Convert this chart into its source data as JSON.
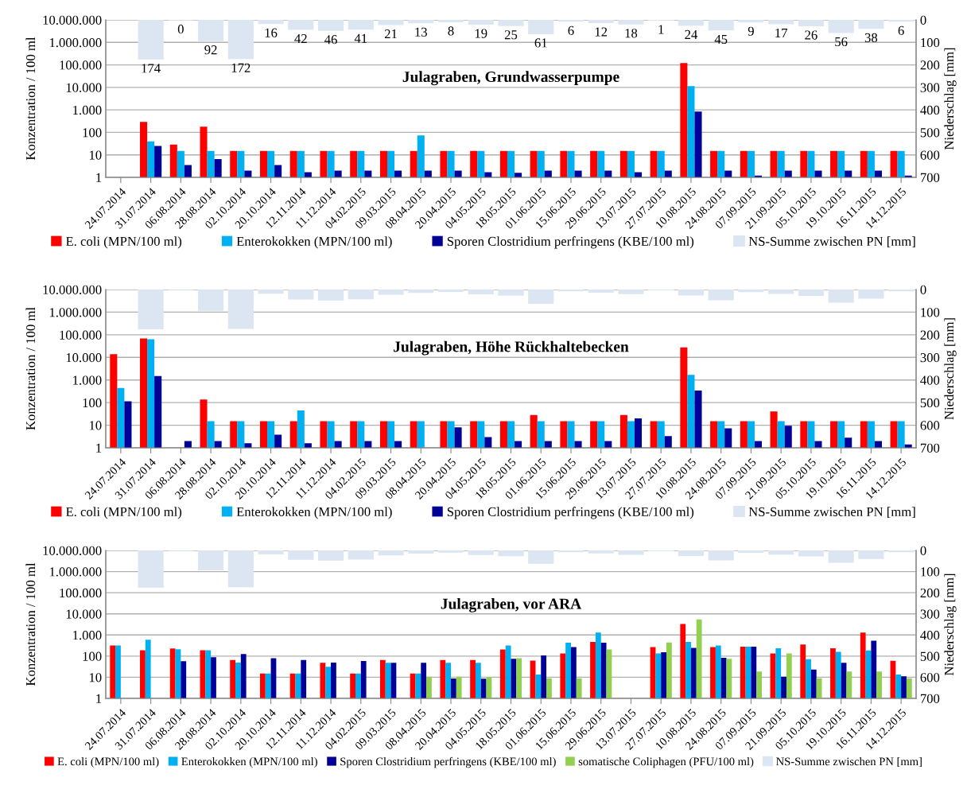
{
  "chart_data": [
    {
      "type": "bar",
      "title": "Julagraben, Grundwasserpumpe",
      "ylabel": "Konzentration / 100 ml",
      "y2label": "Niederschlag [mm]",
      "categories": [
        "24.07.2014",
        "31.07.2014",
        "06.08.2014",
        "28.08.2014",
        "02.10.2014",
        "20.10.2014",
        "12.11.2014",
        "11.12.2014",
        "04.02.2015",
        "09.03.2015",
        "08.04.2015",
        "20.04.2015",
        "04.05.2015",
        "18.05.2015",
        "01.06.2015",
        "15.06.2015",
        "29.06.2015",
        "13.07.2015",
        "27.07.2015",
        "10.08.2015",
        "24.08.2015",
        "07.09.2015",
        "21.09.2015",
        "05.10.2015",
        "19.10.2015",
        "16.11.2015",
        "14.12.2015"
      ],
      "series": [
        {
          "name": "E. coli (MPN/100 ml)",
          "color": "#ff0000",
          "values": [
            null,
            290,
            29,
            180,
            15,
            15,
            15,
            15,
            15,
            15,
            15,
            15,
            15,
            15,
            15,
            15,
            15,
            15,
            15,
            120000,
            15,
            15,
            15,
            15,
            15,
            15,
            15
          ]
        },
        {
          "name": "Enterokokken (MPN/100 ml)",
          "color": "#00b0f0",
          "values": [
            null,
            40,
            15,
            15,
            15,
            15,
            15,
            15,
            15,
            15,
            74,
            15,
            15,
            15,
            15,
            15,
            15,
            15,
            15,
            11500,
            15,
            15,
            15,
            15,
            15,
            15,
            15
          ]
        },
        {
          "name": "Sporen Clostridium perfringens (KBE/100 ml)",
          "color": "#000099",
          "values": [
            null,
            25,
            3.5,
            6.5,
            2,
            3.5,
            1.7,
            2,
            2,
            2,
            2,
            2,
            1.7,
            1.6,
            2,
            2,
            2,
            1.7,
            2,
            850,
            2,
            1.2,
            2,
            2,
            2,
            2,
            1.2
          ]
        },
        {
          "name": "NS-Summe zwischen PN [mm]",
          "color": "#dce6f2",
          "axis": "y2",
          "values": [
            null,
            174,
            0,
            92,
            172,
            16,
            42,
            46,
            41,
            21,
            13,
            8,
            19,
            25,
            61,
            6,
            12,
            18,
            1,
            24,
            45,
            9,
            17,
            26,
            56,
            38,
            6
          ],
          "value_labels": [
            null,
            "174",
            "0",
            "92",
            "172",
            "16",
            "42",
            "46",
            "41",
            "21",
            "13",
            "8",
            "19",
            "25",
            "61",
            "6",
            "12",
            "18",
            "1",
            "24",
            "45",
            "9",
            "17",
            "26",
            "56",
            "38",
            "6"
          ]
        }
      ],
      "log": "y",
      "ylim": [
        1,
        10000000
      ],
      "yticks": [
        {
          "value": 1,
          "label": "1"
        },
        {
          "value": 10,
          "label": "10"
        },
        {
          "value": 100,
          "label": "100"
        },
        {
          "value": 1000,
          "label": "1.000"
        },
        {
          "value": 10000,
          "label": "10.000"
        },
        {
          "value": 100000,
          "label": "100.000"
        },
        {
          "value": 1000000,
          "label": "1.000.000"
        },
        {
          "value": 10000000,
          "label": "10.000.000"
        }
      ],
      "y2lim": [
        700,
        0
      ],
      "y2ticks": [
        0,
        100,
        200,
        300,
        400,
        500,
        600,
        700
      ],
      "grid": "y",
      "legend": "bottom"
    },
    {
      "type": "bar",
      "title": "Julagraben, Höhe Rückhaltebecken",
      "ylabel": "Konzentration / 100 ml",
      "y2label": "Niederschlag [mm]",
      "categories": [
        "24.07.2014",
        "31.07.2014",
        "06.08.2014",
        "28.08.2014",
        "02.10.2014",
        "20.10.2014",
        "12.11.2014",
        "11.12.2014",
        "04.02.2015",
        "09.03.2015",
        "08.04.2015",
        "20.04.2015",
        "04.05.2015",
        "18.05.2015",
        "01.06.2015",
        "15.06.2015",
        "29.06.2015",
        "13.07.2015",
        "27.07.2015",
        "10.08.2015",
        "24.08.2015",
        "07.09.2015",
        "21.09.2015",
        "05.10.2015",
        "19.10.2015",
        "16.11.2015",
        "14.12.2015"
      ],
      "series": [
        {
          "name": "E. coli (MPN/100 ml)",
          "color": "#ff0000",
          "values": [
            14000,
            69000,
            null,
            137,
            15,
            15,
            15,
            15,
            15,
            15,
            15,
            15,
            15,
            15,
            28,
            15,
            15,
            28,
            15,
            27500,
            15,
            15,
            41,
            15,
            15,
            15,
            15
          ]
        },
        {
          "name": "Enterokokken (MPN/100 ml)",
          "color": "#00b0f0",
          "values": [
            440,
            63000,
            null,
            15,
            15,
            15,
            45,
            15,
            15,
            15,
            15,
            15,
            15,
            15,
            15,
            15,
            15,
            15,
            15,
            1700,
            15,
            15,
            15,
            15,
            15,
            15,
            15
          ]
        },
        {
          "name": "Sporen Clostridium perfringens (KBE/100 ml)",
          "color": "#000099",
          "values": [
            115,
            1500,
            2,
            2,
            1.6,
            3.8,
            1.6,
            2,
            2,
            2,
            null,
            8,
            3,
            2,
            2,
            2,
            2,
            20,
            3.3,
            340,
            7.3,
            2,
            9.5,
            2,
            2.8,
            2,
            1.4
          ]
        },
        {
          "name": "NS-Summe zwischen PN [mm]",
          "color": "#dce6f2",
          "axis": "y2",
          "values": [
            null,
            174,
            0,
            92,
            172,
            16,
            42,
            46,
            41,
            21,
            13,
            8,
            19,
            25,
            61,
            6,
            12,
            18,
            1,
            24,
            45,
            9,
            17,
            26,
            56,
            38,
            6
          ]
        }
      ],
      "log": "y",
      "ylim": [
        1,
        10000000
      ],
      "yticks": [
        {
          "value": 1,
          "label": "1"
        },
        {
          "value": 10,
          "label": "10"
        },
        {
          "value": 100,
          "label": "100"
        },
        {
          "value": 1000,
          "label": "1.000"
        },
        {
          "value": 10000,
          "label": "10.000"
        },
        {
          "value": 100000,
          "label": "100.000"
        },
        {
          "value": 1000000,
          "label": "1.000.000"
        },
        {
          "value": 10000000,
          "label": "10.000.000"
        }
      ],
      "y2lim": [
        700,
        0
      ],
      "y2ticks": [
        0,
        100,
        200,
        300,
        400,
        500,
        600,
        700
      ],
      "grid": "y",
      "legend": "bottom"
    },
    {
      "type": "bar",
      "title": "Julagraben, vor ARA",
      "ylabel": "Konzentration / 100 ml",
      "y2label": "Niederschlag [mm]",
      "categories": [
        "24.07.2014",
        "31.07.2014",
        "06.08.2014",
        "28.08.2014",
        "02.10.2014",
        "20.10.2014",
        "12.11.2014",
        "11.12.2014",
        "04.02.2015",
        "09.03.2015",
        "08.04.2015",
        "20.04.2015",
        "04.05.2015",
        "18.05.2015",
        "01.06.2015",
        "15.06.2015",
        "29.06.2015",
        "13.07.2015",
        "27.07.2015",
        "10.08.2015",
        "24.08.2015",
        "07.09.2015",
        "21.09.2015",
        "05.10.2015",
        "19.10.2015",
        "16.11.2015",
        "14.12.2015"
      ],
      "series": [
        {
          "name": "E. coli (MPN/100 ml)",
          "color": "#ff0000",
          "values": [
            320,
            190,
            230,
            190,
            65,
            15,
            15,
            48,
            15,
            65,
            15,
            65,
            65,
            205,
            61,
            134,
            475,
            null,
            265,
            3300,
            265,
            282,
            134,
            355,
            233,
            1300,
            60
          ]
        },
        {
          "name": "Enterokokken (MPN/100 ml)",
          "color": "#00b0f0",
          "values": [
            320,
            590,
            210,
            190,
            49,
            15,
            15,
            31,
            15,
            48,
            15,
            48,
            48,
            320,
            13.5,
            430,
            1300,
            null,
            134,
            475,
            320,
            282,
            233,
            72,
            158,
            185,
            13.5
          ]
        },
        {
          "name": "Sporen Clostridium perfringens (KBE/100 ml)",
          "color": "#000099",
          "values": [
            null,
            null,
            57,
            88,
            125,
            80,
            65,
            49,
            59,
            48,
            48,
            8.8,
            8.5,
            75,
            107,
            265,
            430,
            null,
            152,
            247,
            83,
            282,
            10.7,
            23,
            48,
            540,
            11
          ]
        },
        {
          "name": "somatische Coliphagen (PFU/100 ml)",
          "color": "#92d050",
          "values": [
            null,
            null,
            null,
            null,
            null,
            null,
            null,
            null,
            null,
            null,
            10.7,
            10.7,
            10,
            80,
            9,
            9,
            205,
            null,
            445,
            5400,
            75,
            18.5,
            134,
            9,
            18.5,
            18.5,
            9
          ]
        },
        {
          "name": "NS-Summe zwischen PN [mm]",
          "color": "#dce6f2",
          "axis": "y2",
          "values": [
            null,
            174,
            0,
            92,
            172,
            16,
            42,
            46,
            41,
            21,
            13,
            8,
            19,
            25,
            61,
            6,
            12,
            18,
            1,
            24,
            45,
            9,
            17,
            26,
            56,
            38,
            6
          ]
        }
      ],
      "log": "y",
      "ylim": [
        1,
        10000000
      ],
      "yticks": [
        {
          "value": 1,
          "label": "1"
        },
        {
          "value": 10,
          "label": "10"
        },
        {
          "value": 100,
          "label": "100"
        },
        {
          "value": 1000,
          "label": "1.000"
        },
        {
          "value": 10000,
          "label": "10.000"
        },
        {
          "value": 100000,
          "label": "100.000"
        },
        {
          "value": 1000000,
          "label": "1.000.000"
        },
        {
          "value": 10000000,
          "label": "10.000.000"
        }
      ],
      "y2lim": [
        700,
        0
      ],
      "y2ticks": [
        0,
        100,
        200,
        300,
        400,
        500,
        600,
        700
      ],
      "grid": "y",
      "legend": "bottom"
    }
  ]
}
